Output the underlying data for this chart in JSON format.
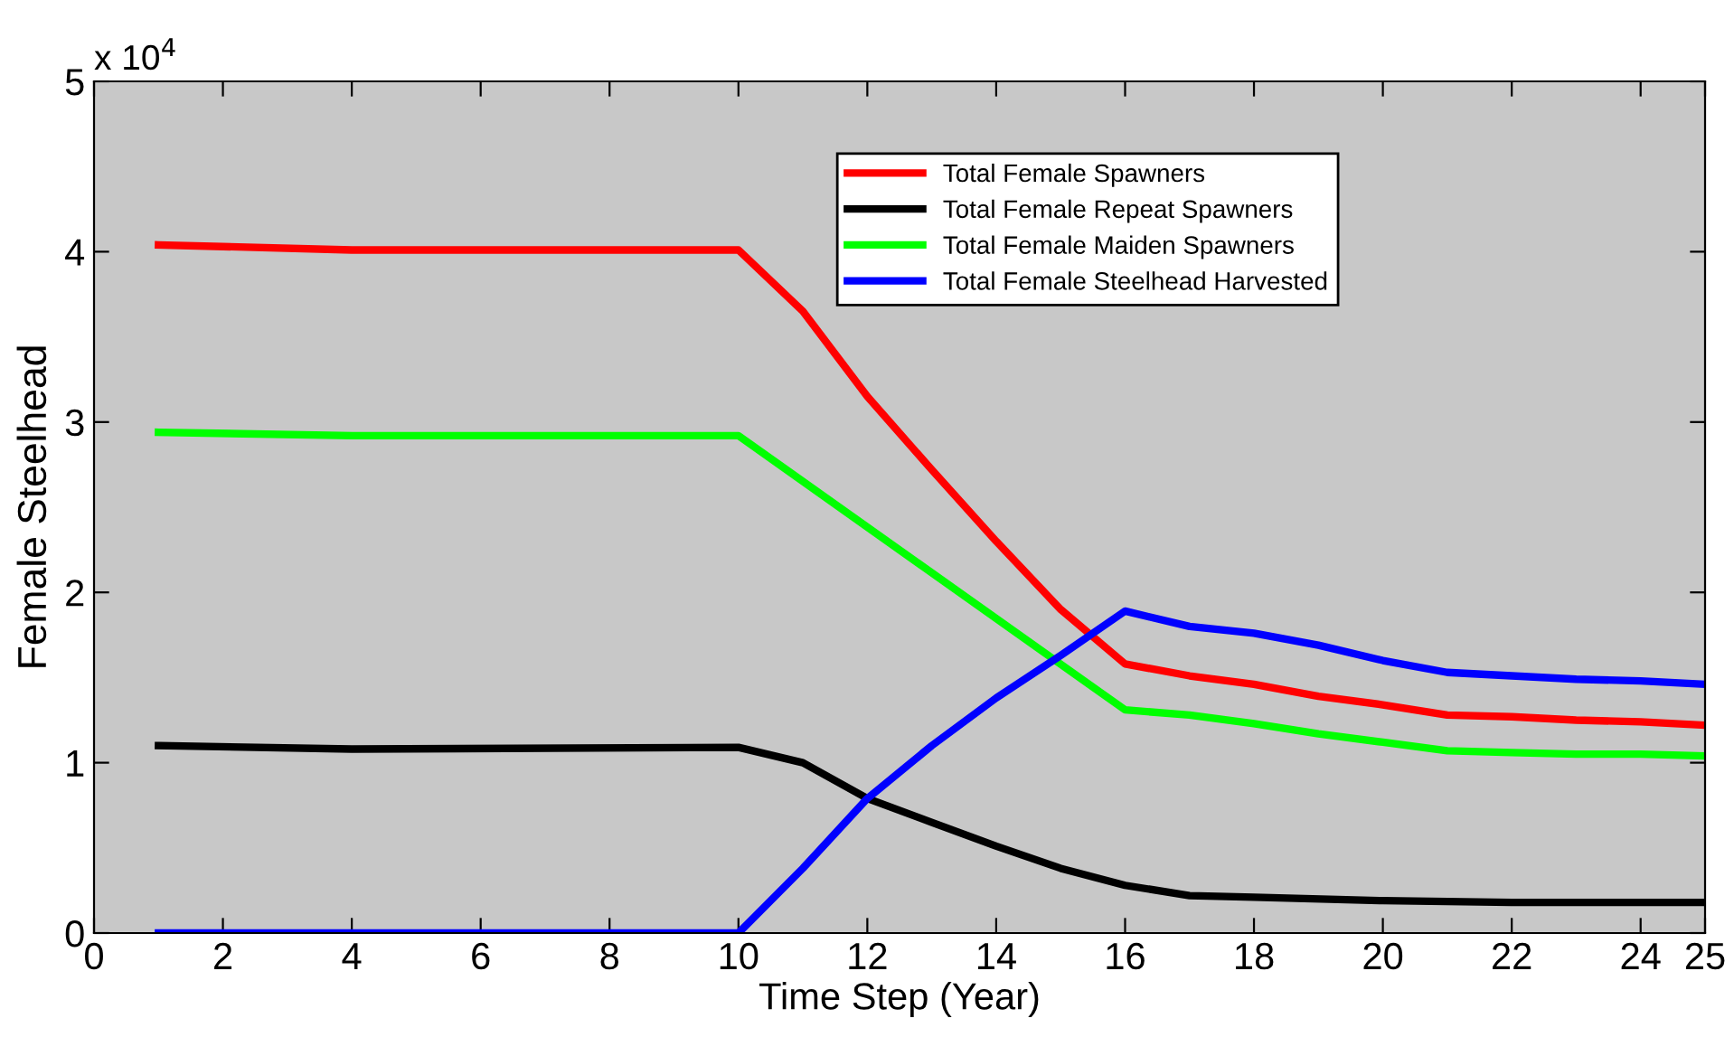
{
  "chart_data": {
    "type": "line",
    "xlabel": "Time Step (Year)",
    "ylabel": "Female Steelhead",
    "annotations": [
      "x 10$^{4}$"
    ],
    "xlim": [
      0,
      25
    ],
    "xticks": [
      0,
      2,
      4,
      6,
      8,
      10,
      12,
      14,
      16,
      18,
      20,
      22,
      24,
      25
    ],
    "ylim": [
      0,
      5
    ],
    "yticks": [
      0,
      1,
      2,
      3,
      4,
      5
    ],
    "grid": false,
    "legend": "top right",
    "marker": "none",
    "line_style": "solid",
    "series": [
      {
        "name": "Total Female Spawners",
        "color": "#ff0000",
        "x": [
          1,
          4,
          10,
          11,
          12,
          13,
          14,
          15,
          16,
          17,
          18,
          19,
          20,
          21,
          22,
          23,
          24,
          25
        ],
        "values": [
          4.04,
          4.01,
          4.01,
          3.65,
          3.15,
          2.72,
          2.3,
          1.9,
          1.58,
          1.51,
          1.46,
          1.39,
          1.34,
          1.28,
          1.27,
          1.25,
          1.24,
          1.22
        ]
      },
      {
        "name": "Total Female Repeat Spawners",
        "color": "#000000",
        "x": [
          1,
          4,
          10,
          11,
          12,
          13,
          14,
          15,
          16,
          17,
          18,
          20,
          22,
          25
        ],
        "values": [
          1.1,
          1.08,
          1.09,
          1.0,
          0.79,
          0.65,
          0.51,
          0.38,
          0.28,
          0.22,
          0.21,
          0.19,
          0.18,
          0.18
        ]
      },
      {
        "name": "Total Female Maiden Spawners",
        "color": "#00ff00",
        "x": [
          1,
          4,
          10,
          16,
          17,
          18,
          19,
          20,
          21,
          22,
          23,
          24,
          25
        ],
        "values": [
          2.94,
          2.92,
          2.92,
          1.31,
          1.28,
          1.23,
          1.17,
          1.12,
          1.07,
          1.06,
          1.05,
          1.05,
          1.04
        ]
      },
      {
        "name": "Total Female Steelhead Harvested",
        "color": "#0000ff",
        "x": [
          1,
          10,
          11,
          12,
          13,
          14,
          15,
          16,
          17,
          18,
          19,
          20,
          21,
          22,
          23,
          24,
          25
        ],
        "values": [
          0,
          0,
          0.38,
          0.79,
          1.1,
          1.38,
          1.63,
          1.89,
          1.8,
          1.76,
          1.69,
          1.6,
          1.53,
          1.51,
          1.49,
          1.48,
          1.46
        ]
      }
    ]
  }
}
